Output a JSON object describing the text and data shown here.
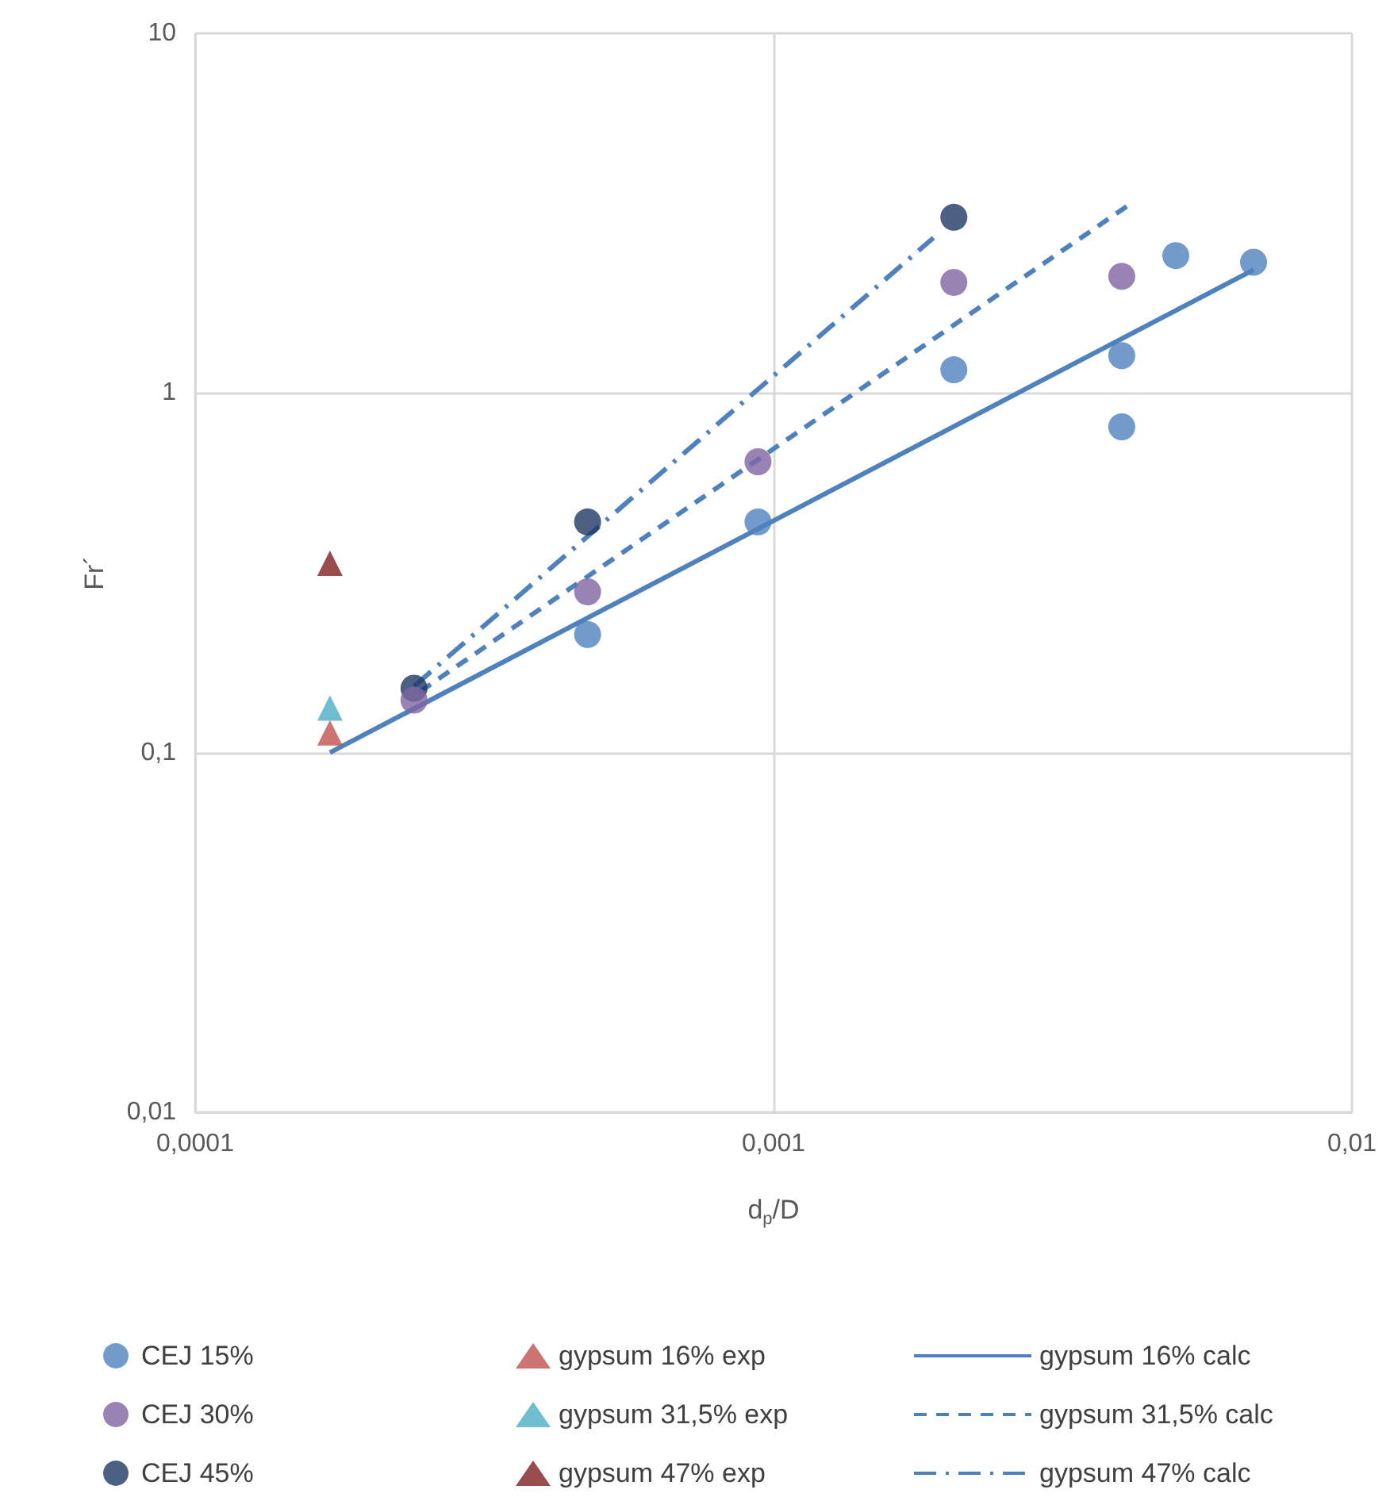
{
  "chart_data": {
    "type": "scatter",
    "xlabel": "d$_{p}$/D",
    "ylabel": "Fr´",
    "log": "xy",
    "grid": true,
    "legend": "bottom",
    "xlim": [
      0.0001,
      0.01
    ],
    "xticks": [
      {
        "value": 0.0001,
        "label": "0,0001"
      },
      {
        "value": 0.001,
        "label": "0,001"
      },
      {
        "value": 0.01,
        "label": "0,01"
      }
    ],
    "ylim": [
      0.01,
      10
    ],
    "yticks": [
      {
        "value": 0.01,
        "label": "0,01"
      },
      {
        "value": 0.1,
        "label": "0,1"
      },
      {
        "value": 1,
        "label": "1"
      },
      {
        "value": 10,
        "label": "10"
      }
    ],
    "series": [
      {
        "name": "CEJ 15%",
        "marker": "circle",
        "color": "#4f81bd",
        "x": [
          0.000477,
          0.00094,
          0.00205,
          0.004,
          0.004,
          0.00496,
          0.00676
        ],
        "values": [
          0.213,
          0.438,
          1.16,
          1.27,
          0.805,
          2.41,
          2.31
        ]
      },
      {
        "name": "gypsum 16% exp",
        "marker": "triangle",
        "color": "#c0504d",
        "x": [
          0.000171
        ],
        "values": [
          0.1135
        ]
      },
      {
        "name": "gypsum 16% calc",
        "type": "line",
        "marker": "none",
        "line_style": "solid",
        "color": "#4f81bd",
        "x": [
          0.000171,
          0.00676
        ],
        "values": [
          0.1,
          2.2
        ]
      },
      {
        "name": "CEJ 30%",
        "marker": "circle",
        "color": "#8064a2",
        "x": [
          0.000239,
          0.000477,
          0.00094,
          0.00205,
          0.004
        ],
        "values": [
          0.14,
          0.28,
          0.644,
          2.03,
          2.11
        ]
      },
      {
        "name": "gypsum 31,5% exp",
        "marker": "triangle",
        "color": "#4bacc6",
        "x": [
          0.000171
        ],
        "values": [
          0.133
        ]
      },
      {
        "name": "gypsum 31,5% calc",
        "type": "line",
        "marker": "none",
        "line_style": "dashed",
        "color": "#4f81bd",
        "x": [
          0.000245,
          0.0041
        ],
        "values": [
          0.148,
          3.32
        ]
      },
      {
        "name": "CEJ 45%",
        "marker": "circle",
        "color": "#1f3864",
        "x": [
          0.000239,
          0.000477,
          0.00205
        ],
        "values": [
          0.151,
          0.438,
          3.08
        ]
      },
      {
        "name": "gypsum 47% exp",
        "marker": "triangle",
        "color": "#7f1f1f",
        "x": [
          0.000171
        ],
        "values": [
          0.336
        ]
      },
      {
        "name": "gypsum 47% calc",
        "type": "line",
        "marker": "none",
        "line_style": "dashdot",
        "color": "#4f81bd",
        "x": [
          0.000239,
          0.00189
        ],
        "values": [
          0.153,
          2.7
        ]
      }
    ]
  }
}
